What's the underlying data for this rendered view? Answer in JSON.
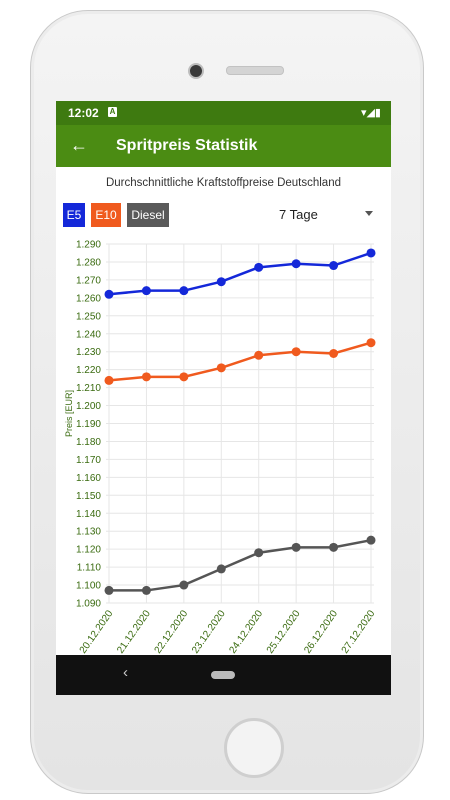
{
  "status": {
    "time": "12:02",
    "notification_icon": "A",
    "icons": "▾◢▮"
  },
  "appbar": {
    "back_icon": "←",
    "title": "Spritpreis Statistik"
  },
  "chart_title": "Durchschnittliche Kraftstoffpreise Deutschland",
  "fuel_buttons": {
    "e5": "E5",
    "e10": "E10",
    "diesel": "Diesel"
  },
  "period": {
    "selected": "7 Tage"
  },
  "nav": {
    "back_icon": "‹"
  },
  "colors": {
    "appbar": "#4b8c13",
    "statusbar": "#3e7a10",
    "e5": "#1428d9",
    "e10": "#f05a1e",
    "diesel": "#555555",
    "axis_text": "#3a6b10"
  },
  "chart_data": {
    "type": "line",
    "ylabel": "Preis [EUR]",
    "ylim": [
      1.09,
      1.29
    ],
    "yticks": [
      "1.090",
      "1.100",
      "1.110",
      "1.120",
      "1.130",
      "1.140",
      "1.150",
      "1.160",
      "1.170",
      "1.180",
      "1.190",
      "1.200",
      "1.210",
      "1.220",
      "1.230",
      "1.240",
      "1.250",
      "1.260",
      "1.270",
      "1.280",
      "1.290"
    ],
    "categories": [
      "20.12.2020",
      "21.12.2020",
      "22.12.2020",
      "23.12.2020",
      "24.12.2020",
      "25.12.2020",
      "26.12.2020",
      "27.12.2020"
    ],
    "grid": true,
    "series": [
      {
        "name": "E5",
        "color": "#1428d9",
        "values": [
          1.262,
          1.264,
          1.264,
          1.269,
          1.277,
          1.279,
          1.278,
          1.285
        ]
      },
      {
        "name": "E10",
        "color": "#f05a1e",
        "values": [
          1.214,
          1.216,
          1.216,
          1.221,
          1.228,
          1.23,
          1.229,
          1.235
        ]
      },
      {
        "name": "Diesel",
        "color": "#555555",
        "values": [
          1.097,
          1.097,
          1.1,
          1.109,
          1.118,
          1.121,
          1.121,
          1.125
        ]
      }
    ]
  }
}
